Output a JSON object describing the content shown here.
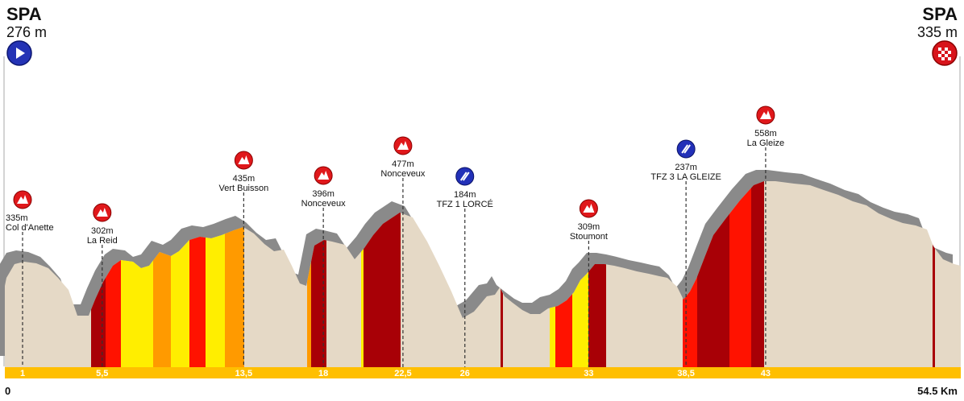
{
  "start": {
    "name": "SPA",
    "altitude": "276 m",
    "icon": "play-icon"
  },
  "finish": {
    "name": "SPA",
    "altitude": "335 m",
    "icon": "checkered-flag-icon"
  },
  "distance": {
    "start_label": "0",
    "end_label": "54.5 Km"
  },
  "colors": {
    "terrain": "#e5d9c6",
    "shadow": "#8a8a8a",
    "km_bar": "#ffbf00",
    "climb_red": "#ff1200",
    "climb_dark": "#a80006",
    "climb_orange": "#ff9a00",
    "climb_yellow": "#ffee00",
    "marker_red": "#e0181b",
    "marker_blue": "#2230b8"
  },
  "markers": [
    {
      "alt": "335m",
      "name": "Col d'Anette",
      "type": "climb",
      "km": 1
    },
    {
      "alt": "302m",
      "name": "La Reid",
      "type": "climb",
      "km": 5.5
    },
    {
      "alt": "435m",
      "name": "Vert Buisson",
      "type": "climb",
      "km": 13.5
    },
    {
      "alt": "396m",
      "name": "Nonceveux",
      "type": "climb",
      "km": 18
    },
    {
      "alt": "477m",
      "name": "Nonceveux",
      "type": "climb",
      "km": 22.5
    },
    {
      "alt": "184m",
      "name": "TFZ 1 LORCÉ",
      "type": "sprint",
      "km": 26
    },
    {
      "alt": "309m",
      "name": "Stoumont",
      "type": "climb",
      "km": 33
    },
    {
      "alt": "237m",
      "name": "TFZ 3 LA GLEIZE",
      "type": "sprint",
      "km": 38.5
    },
    {
      "alt": "558m",
      "name": "La Gleize",
      "type": "climb",
      "km": 43
    }
  ],
  "km_ticks": [
    "1",
    "5,5",
    "13,5",
    "18",
    "22,5",
    "26",
    "33",
    "38,5",
    "43"
  ]
}
